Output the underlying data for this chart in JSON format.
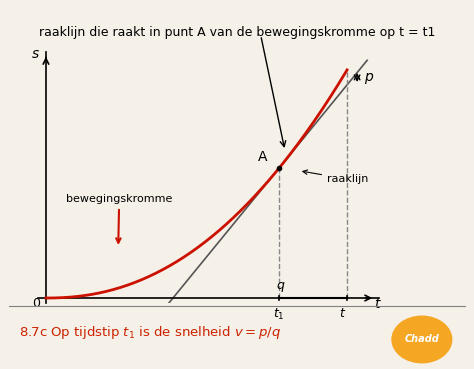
{
  "background_color": "#f5f0e8",
  "plot_bg_color": "#f5f0e8",
  "title_text": "raaklijn die raakt in punt A van de bewegingskromme op t = t1",
  "title_fontsize": 9,
  "caption_text": "8.7c Op tijdstip $t_1$ is de snelheid $v = p / q$",
  "caption_color": "#cc2200",
  "xlabel": "t",
  "ylabel": "s",
  "curve_color": "#cc1100",
  "tangent_color": "#555555",
  "dashed_color": "#888888",
  "t1": 0.58,
  "t_max": 0.75,
  "p_label": "p",
  "q_label": "q",
  "A_label": "A",
  "bewegingskromme_label": "bewegingskromme",
  "raaklijn_label": "raaklijn"
}
